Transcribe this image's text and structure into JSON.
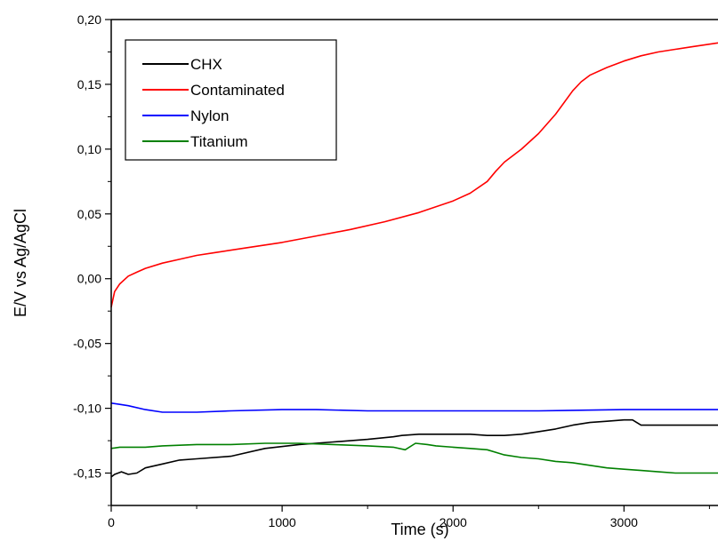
{
  "chart_data": {
    "type": "line",
    "xlabel": "Time (s)",
    "ylabel": "E/V vs Ag/AgCl",
    "xlim": [
      0,
      3550
    ],
    "ylim": [
      -0.175,
      0.2
    ],
    "x_ticks": [
      "0",
      "1000",
      "2000",
      "3000"
    ],
    "y_ticks": [
      "0,20",
      "0,15",
      "0,10",
      "0,05",
      "0,00",
      "-0,05",
      "-0,10",
      "-0,15"
    ],
    "legend_position": "top-left",
    "grid": false,
    "series": [
      {
        "name": "CHX",
        "color": "#000000",
        "x": [
          0,
          20,
          60,
          100,
          150,
          200,
          300,
          400,
          500,
          700,
          900,
          1100,
          1300,
          1500,
          1650,
          1700,
          1800,
          1900,
          2000,
          2100,
          2200,
          2300,
          2400,
          2500,
          2600,
          2700,
          2800,
          2900,
          3000,
          3050,
          3100,
          3200,
          3300,
          3400,
          3550
        ],
        "y": [
          -0.153,
          -0.151,
          -0.149,
          -0.151,
          -0.15,
          -0.146,
          -0.143,
          -0.14,
          -0.139,
          -0.137,
          -0.131,
          -0.128,
          -0.126,
          -0.124,
          -0.122,
          -0.121,
          -0.12,
          -0.12,
          -0.12,
          -0.12,
          -0.121,
          -0.121,
          -0.12,
          -0.118,
          -0.116,
          -0.113,
          -0.111,
          -0.11,
          -0.109,
          -0.109,
          -0.113,
          -0.113,
          -0.113,
          -0.113,
          -0.113
        ]
      },
      {
        "name": "Contaminated",
        "color": "#ff0000",
        "x": [
          0,
          20,
          50,
          100,
          150,
          200,
          300,
          400,
          500,
          600,
          800,
          1000,
          1200,
          1400,
          1600,
          1800,
          2000,
          2100,
          2200,
          2250,
          2300,
          2400,
          2500,
          2600,
          2650,
          2700,
          2750,
          2800,
          2900,
          3000,
          3100,
          3200,
          3300,
          3400,
          3550
        ],
        "y": [
          -0.022,
          -0.01,
          -0.004,
          0.002,
          0.005,
          0.008,
          0.012,
          0.015,
          0.018,
          0.02,
          0.024,
          0.028,
          0.033,
          0.038,
          0.044,
          0.051,
          0.06,
          0.066,
          0.075,
          0.083,
          0.09,
          0.1,
          0.112,
          0.127,
          0.136,
          0.145,
          0.152,
          0.157,
          0.163,
          0.168,
          0.172,
          0.175,
          0.177,
          0.179,
          0.182
        ]
      },
      {
        "name": "Nylon",
        "color": "#0000ff",
        "x": [
          0,
          50,
          100,
          200,
          300,
          400,
          500,
          700,
          1000,
          1200,
          1500,
          2000,
          2500,
          3000,
          3550
        ],
        "y": [
          -0.096,
          -0.097,
          -0.098,
          -0.101,
          -0.103,
          -0.103,
          -0.103,
          -0.102,
          -0.101,
          -0.101,
          -0.102,
          -0.102,
          -0.102,
          -0.101,
          -0.101
        ],
        "x_note": ""
      },
      {
        "name": "Titanium",
        "color": "#008000",
        "x": [
          0,
          50,
          100,
          200,
          300,
          500,
          700,
          900,
          1100,
          1300,
          1500,
          1650,
          1720,
          1780,
          1850,
          1900,
          2000,
          2100,
          2200,
          2300,
          2400,
          2500,
          2600,
          2700,
          2800,
          2900,
          3000,
          3100,
          3200,
          3300,
          3400,
          3550
        ],
        "y": [
          -0.131,
          -0.13,
          -0.13,
          -0.13,
          -0.129,
          -0.128,
          -0.128,
          -0.127,
          -0.127,
          -0.128,
          -0.129,
          -0.13,
          -0.132,
          -0.127,
          -0.128,
          -0.129,
          -0.13,
          -0.131,
          -0.132,
          -0.136,
          -0.138,
          -0.139,
          -0.141,
          -0.142,
          -0.144,
          -0.146,
          -0.147,
          -0.148,
          -0.149,
          -0.15,
          -0.15,
          -0.15
        ]
      }
    ]
  }
}
